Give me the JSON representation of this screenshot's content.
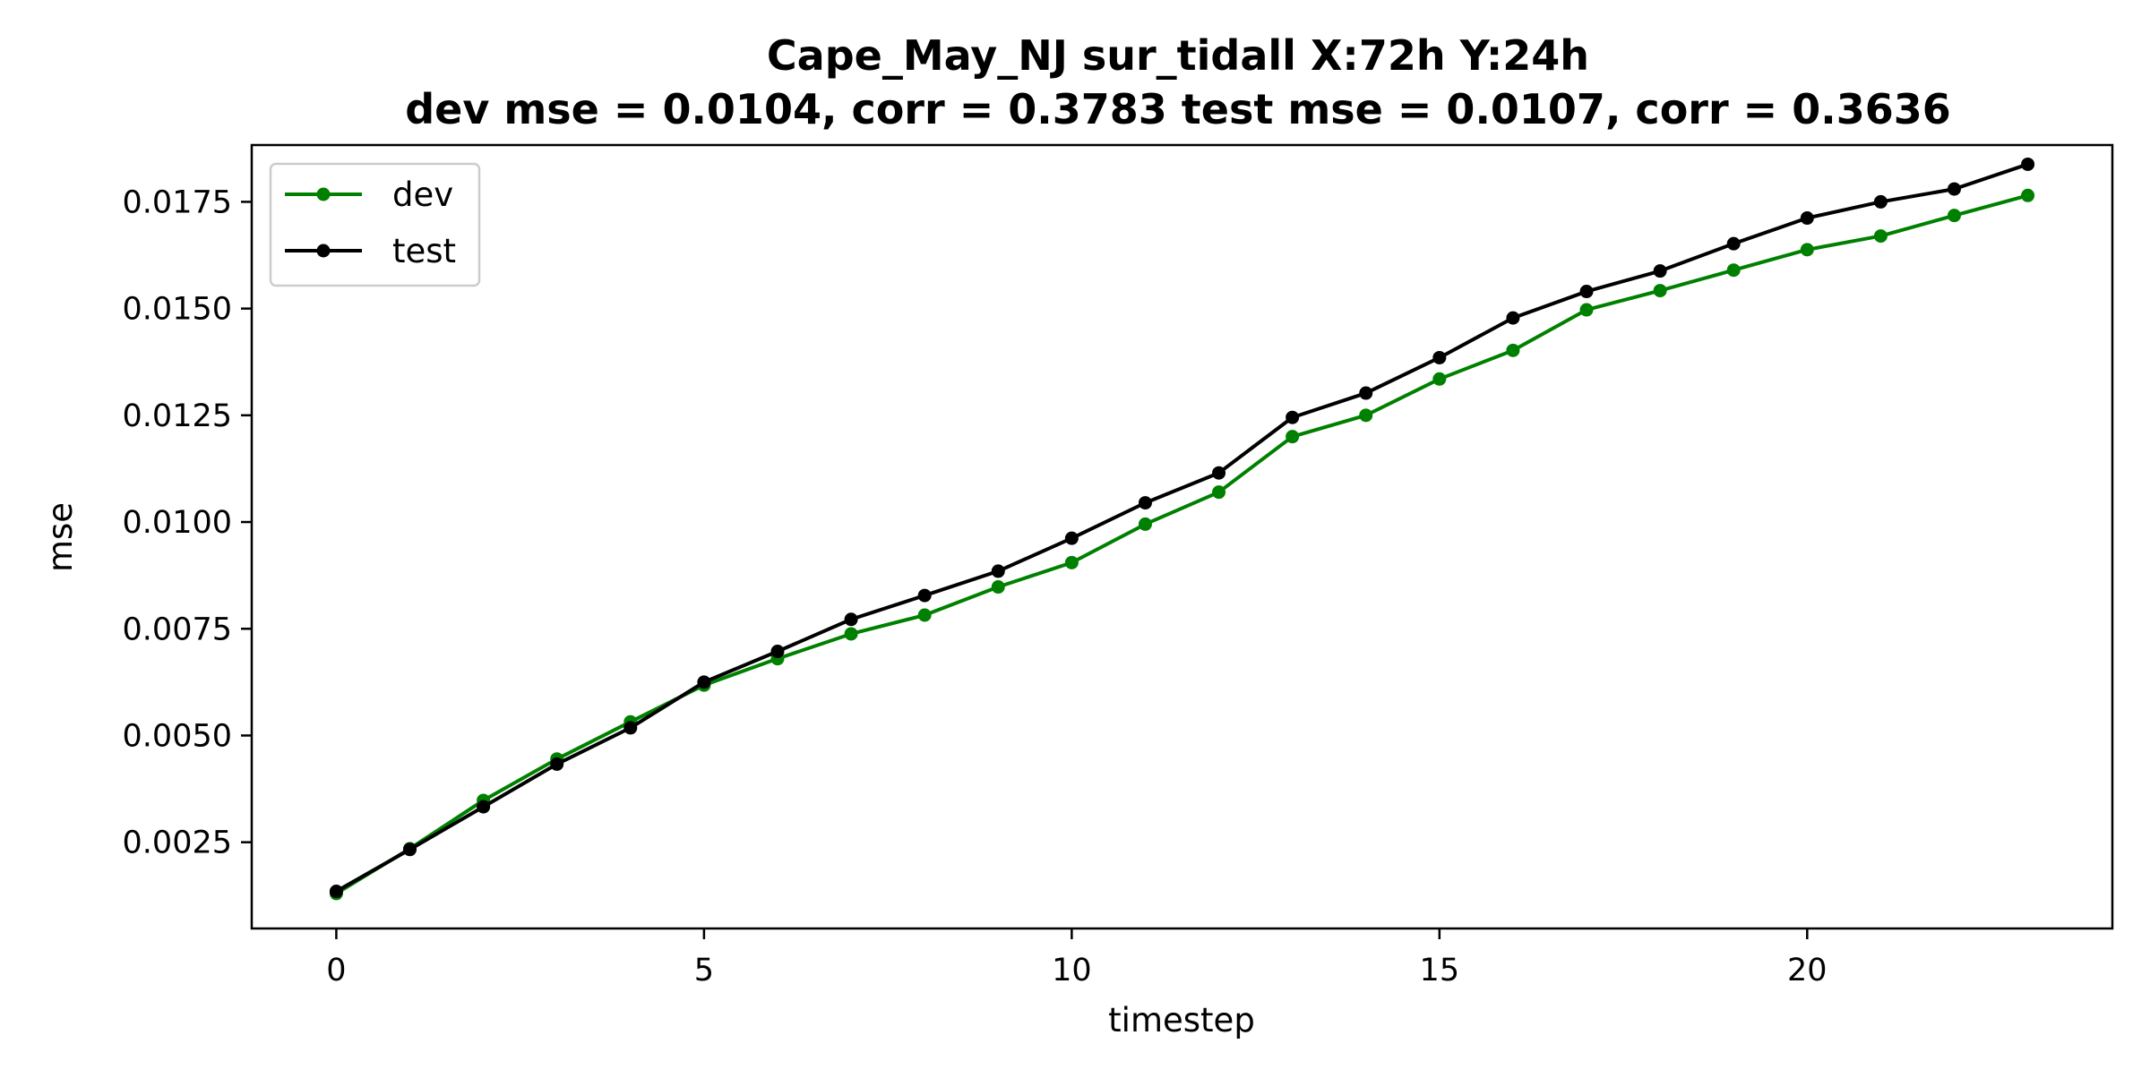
{
  "chart_data": {
    "type": "line",
    "title_line1": "Cape_May_NJ   sur_tidall   X:72h   Y:24h",
    "title_line2": "dev mse = 0.0104, corr = 0.3783   test mse = 0.0107, corr = 0.3636",
    "xlabel": "timestep",
    "ylabel": "mse",
    "xlim": [
      -1.15,
      24.15
    ],
    "ylim": [
      0.00048,
      0.01883
    ],
    "xticks": [
      0,
      5,
      10,
      15,
      20
    ],
    "xtick_labels": [
      "0",
      "5",
      "10",
      "15",
      "20"
    ],
    "yticks": [
      0.0025,
      0.005,
      0.0075,
      0.01,
      0.0125,
      0.015,
      0.0175
    ],
    "ytick_labels": [
      "0.0025",
      "0.0050",
      "0.0075",
      "0.0100",
      "0.0125",
      "0.0150",
      "0.0175"
    ],
    "grid": false,
    "legend_position": "top-left",
    "x": [
      0,
      1,
      2,
      3,
      4,
      5,
      6,
      7,
      8,
      9,
      10,
      11,
      12,
      13,
      14,
      15,
      16,
      17,
      18,
      19,
      20,
      21,
      22,
      23
    ],
    "series": [
      {
        "name": "dev",
        "color": "#008000",
        "values": [
          0.0013,
          0.00235,
          0.00348,
          0.00445,
          0.00532,
          0.00618,
          0.0068,
          0.00738,
          0.00782,
          0.00848,
          0.00905,
          0.00995,
          0.0107,
          0.012,
          0.0125,
          0.01335,
          0.01402,
          0.01497,
          0.01542,
          0.0159,
          0.01638,
          0.0167,
          0.01718,
          0.01765
        ]
      },
      {
        "name": "test",
        "color": "#000000",
        "values": [
          0.00135,
          0.00233,
          0.00333,
          0.00433,
          0.00518,
          0.00625,
          0.00697,
          0.00772,
          0.00828,
          0.00885,
          0.00962,
          0.01045,
          0.01115,
          0.01245,
          0.01302,
          0.01385,
          0.01478,
          0.0154,
          0.01588,
          0.01652,
          0.01712,
          0.0175,
          0.0178,
          0.01838
        ]
      }
    ]
  }
}
